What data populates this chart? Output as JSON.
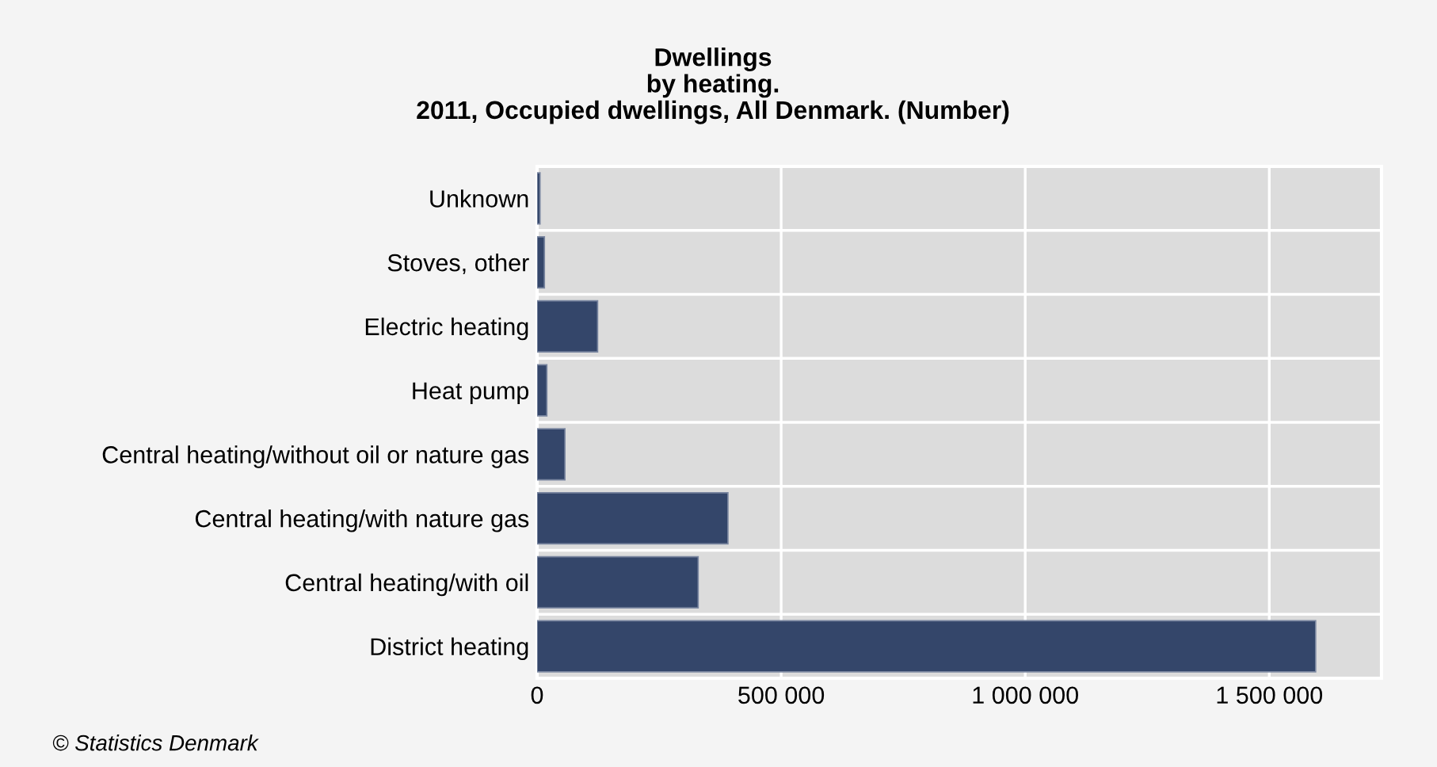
{
  "chart_data": {
    "type": "bar",
    "orientation": "horizontal",
    "title": "Dwellings\nby heating.\n2011, Occupied dwellings, All Denmark. (Number)",
    "categories": [
      "Unknown",
      "Stoves, other",
      "Electric heating",
      "Heat pump",
      "Central heating/without oil or nature gas",
      "Central heating/with nature gas",
      "Central heating/with oil",
      "District heating"
    ],
    "values": [
      6000,
      15000,
      124000,
      20000,
      57000,
      391000,
      330000,
      1595000
    ],
    "color": "#34466a",
    "xlim": [
      0,
      1730000
    ],
    "xticks": [
      0,
      {
        "value": 500000,
        "label": "500 000"
      },
      {
        "value": 1000000,
        "label": "1 000 000"
      },
      {
        "value": 1500000,
        "label": "1 500 000"
      }
    ],
    "grid": true,
    "annotations": [
      "© Statistics Denmark"
    ]
  }
}
